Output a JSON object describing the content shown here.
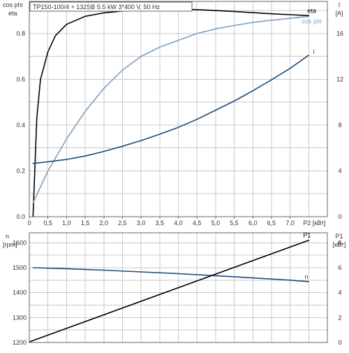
{
  "chart_data": [
    {
      "type": "line",
      "title": "TP150-100/4 + 132SB   5.5 kW   3*400 V, 50 Hz",
      "xlabel": "P2 [кВт]",
      "x_ticks": [
        "0",
        "0,5",
        "1,0",
        "1,5",
        "2,0",
        "2,5",
        "3,0",
        "3,5",
        "4,0",
        "4,5",
        "5,0",
        "5,5",
        "6,0",
        "6,5",
        "7,0"
      ],
      "xlim": [
        0,
        8.0
      ],
      "ylabel_left": [
        "cos phi",
        "eta"
      ],
      "y_left_ticks": [
        "0.0",
        "0.2",
        "0.4",
        "0.6",
        "0.8"
      ],
      "ylim_left": [
        0,
        0.94
      ],
      "ylabel_right": [
        "I",
        "[A]"
      ],
      "y_right_ticks": [
        "0",
        "4",
        "8",
        "12",
        "16"
      ],
      "ylim_right": [
        0,
        18.8
      ],
      "grid": true,
      "series": [
        {
          "name": "eta",
          "axis": "left",
          "color": "#000000",
          "x": [
            0.1,
            0.2,
            0.3,
            0.5,
            0.7,
            1.0,
            1.5,
            2.0,
            2.5,
            3.0,
            3.5,
            4.0,
            4.5,
            5.0,
            5.5,
            6.0,
            6.5,
            7.0,
            7.5
          ],
          "y": [
            0.0,
            0.43,
            0.6,
            0.72,
            0.79,
            0.84,
            0.875,
            0.89,
            0.898,
            0.904,
            0.906,
            0.906,
            0.904,
            0.9,
            0.896,
            0.891,
            0.886,
            0.882,
            0.878
          ]
        },
        {
          "name": "cos phi",
          "axis": "left",
          "color": "#7f9fbf",
          "x": [
            0.1,
            0.5,
            1.0,
            1.5,
            2.0,
            2.5,
            3.0,
            3.5,
            4.0,
            4.5,
            5.0,
            5.5,
            6.0,
            6.5,
            7.0,
            7.5
          ],
          "y": [
            0.06,
            0.2,
            0.34,
            0.46,
            0.56,
            0.64,
            0.7,
            0.74,
            0.77,
            0.8,
            0.82,
            0.835,
            0.848,
            0.858,
            0.866,
            0.874
          ]
        },
        {
          "name": "I",
          "axis": "right",
          "color": "#1f4a7a",
          "x": [
            0.1,
            0.5,
            1.0,
            1.5,
            2.0,
            2.5,
            3.0,
            3.5,
            4.0,
            4.5,
            5.0,
            5.5,
            6.0,
            6.5,
            7.0,
            7.5
          ],
          "y": [
            4.65,
            4.8,
            5.0,
            5.3,
            5.7,
            6.15,
            6.65,
            7.2,
            7.8,
            8.5,
            9.3,
            10.1,
            11.0,
            11.95,
            12.95,
            14.1
          ]
        }
      ]
    },
    {
      "type": "line",
      "xlim": [
        0,
        8.0
      ],
      "ylabel_left": [
        "n",
        "[rpm]"
      ],
      "y_left_ticks": [
        "1200",
        "1300",
        "1400",
        "1500",
        "1600"
      ],
      "ylim_left": [
        1200,
        1640
      ],
      "ylabel_right": [
        "P1",
        "[кВт]"
      ],
      "y_right_ticks": [
        "0",
        "2",
        "4",
        "6",
        "8"
      ],
      "ylim_right": [
        0,
        8.8
      ],
      "grid": true,
      "series": [
        {
          "name": "n",
          "axis": "left",
          "color": "#1f4a7a",
          "x": [
            0.1,
            1.0,
            2.0,
            3.0,
            4.0,
            5.0,
            6.0,
            7.0,
            7.5
          ],
          "y": [
            1500,
            1496,
            1490,
            1483,
            1476,
            1468,
            1459,
            1450,
            1444
          ]
        },
        {
          "name": "P1",
          "axis": "right",
          "color": "#000000",
          "x": [
            0.0,
            7.5
          ],
          "y": [
            0.05,
            8.2
          ]
        }
      ]
    }
  ]
}
